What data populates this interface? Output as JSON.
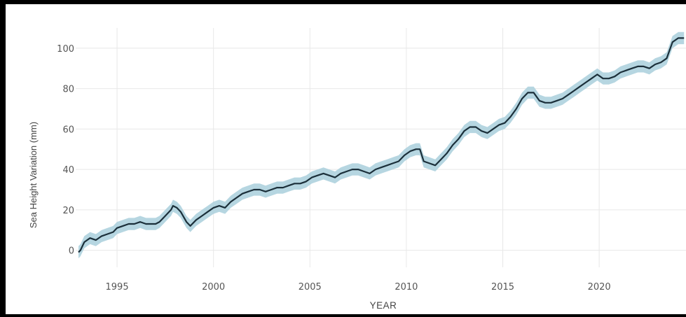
{
  "chart_data": {
    "type": "line",
    "title": "",
    "xlabel": "YEAR",
    "ylabel": "Sea Height Variation (mm)",
    "xlim": [
      1993,
      2024.5
    ],
    "ylim": [
      -5,
      110
    ],
    "x_ticks": [
      1995,
      2000,
      2005,
      2010,
      2015,
      2020
    ],
    "y_ticks": [
      0,
      20,
      40,
      60,
      80,
      100
    ],
    "x_tick_labels": [
      "1995",
      "2000",
      "2005",
      "2010",
      "2015",
      "2020"
    ],
    "y_tick_labels": [
      "0",
      "20",
      "40",
      "60",
      "80",
      "100"
    ],
    "grid": true,
    "legend": "none",
    "colors": {
      "line": "#1b2f3a",
      "band": "#a9cfdc",
      "grid": "#e8e8e8"
    },
    "band_halfwidth": 3,
    "series": [
      {
        "x": [
          1993.0,
          1993.1,
          1993.3,
          1993.6,
          1993.9,
          1994.2,
          1994.5,
          1994.8,
          1995.0,
          1995.3,
          1995.6,
          1995.9,
          1996.2,
          1996.5,
          1996.8,
          1997.0,
          1997.2,
          1997.5,
          1997.8,
          1997.9,
          1998.1,
          1998.3,
          1998.6,
          1998.8,
          1999.1,
          1999.4,
          1999.7,
          2000.0,
          2000.3,
          2000.6,
          2000.9,
          2001.2,
          2001.5,
          2001.8,
          2002.1,
          2002.4,
          2002.7,
          2003.0,
          2003.3,
          2003.6,
          2003.9,
          2004.2,
          2004.5,
          2004.8,
          2005.1,
          2005.4,
          2005.7,
          2006.0,
          2006.3,
          2006.6,
          2006.9,
          2007.2,
          2007.5,
          2007.8,
          2008.1,
          2008.4,
          2008.7,
          2009.0,
          2009.3,
          2009.6,
          2009.9,
          2010.2,
          2010.5,
          2010.7,
          2010.9,
          2011.2,
          2011.5,
          2011.8,
          2012.1,
          2012.4,
          2012.7,
          2013.0,
          2013.3,
          2013.6,
          2013.9,
          2014.2,
          2014.5,
          2014.8,
          2015.1,
          2015.4,
          2015.7,
          2016.0,
          2016.3,
          2016.6,
          2016.9,
          2017.2,
          2017.5,
          2017.8,
          2018.1,
          2018.4,
          2018.7,
          2019.0,
          2019.3,
          2019.6,
          2019.9,
          2020.2,
          2020.5,
          2020.8,
          2021.1,
          2021.4,
          2021.7,
          2022.0,
          2022.3,
          2022.6,
          2022.9,
          2023.2,
          2023.5,
          2023.8,
          2024.1,
          2024.4
        ],
        "y": [
          -1,
          0,
          4,
          6,
          5,
          7,
          8,
          9,
          11,
          12,
          13,
          13,
          14,
          13,
          13,
          13,
          14,
          17,
          20,
          22,
          21,
          19,
          14,
          12,
          15,
          17,
          19,
          21,
          22,
          21,
          24,
          26,
          28,
          29,
          30,
          30,
          29,
          30,
          31,
          31,
          32,
          33,
          33,
          34,
          36,
          37,
          38,
          37,
          36,
          38,
          39,
          40,
          40,
          39,
          38,
          40,
          41,
          42,
          43,
          44,
          47,
          49,
          50,
          50,
          44,
          43,
          42,
          45,
          48,
          52,
          55,
          59,
          61,
          61,
          59,
          58,
          60,
          62,
          63,
          66,
          70,
          75,
          78,
          78,
          74,
          73,
          73,
          74,
          75,
          77,
          79,
          81,
          83,
          85,
          87,
          85,
          85,
          86,
          88,
          89,
          90,
          91,
          91,
          90,
          92,
          93,
          95,
          103,
          105,
          105
        ]
      }
    ]
  }
}
